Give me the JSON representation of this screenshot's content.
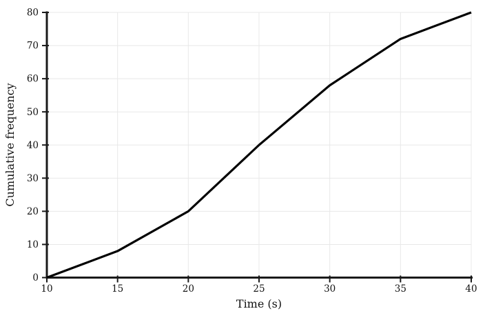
{
  "chart_data": {
    "type": "line",
    "title": "",
    "xlabel": "Time (s)",
    "ylabel": "Cumulative frequency",
    "x": [
      10,
      15,
      20,
      25,
      30,
      35,
      40
    ],
    "y": [
      0,
      8,
      20,
      40,
      58,
      72,
      80
    ],
    "series": [
      {
        "name": "Cumulative frequency",
        "x": [
          10,
          15,
          20,
          25,
          30,
          35,
          40
        ],
        "values": [
          0,
          8,
          20,
          40,
          58,
          72,
          80
        ]
      }
    ],
    "xlim": [
      10,
      40
    ],
    "ylim": [
      0,
      80
    ],
    "xticks": [
      10,
      15,
      20,
      25,
      30,
      35,
      40
    ],
    "yticks": [
      0,
      10,
      20,
      30,
      40,
      50,
      60,
      70,
      80
    ],
    "grid": true,
    "legend": "none",
    "line_color": "#000000",
    "grid_color": "#e8e8e8",
    "spine_color": "#1a1a1a",
    "tick_color": "#1a1a1a",
    "text_color": "#111111",
    "background_color": "#ffffff"
  }
}
